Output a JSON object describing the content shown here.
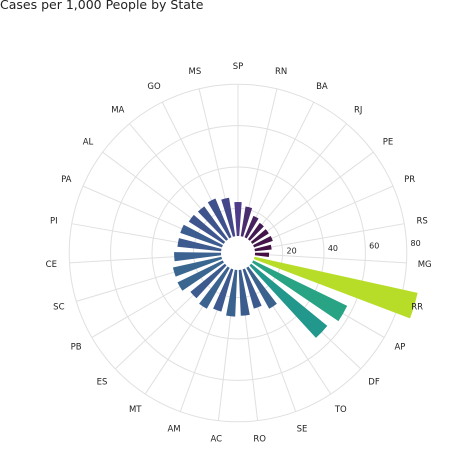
{
  "chart_data": {
    "type": "bar",
    "subtype": "polar-bar",
    "title": "Cases per 1,000 People by State",
    "categories": [
      "SP",
      "RN",
      "BA",
      "RJ",
      "PE",
      "PR",
      "RS",
      "MG",
      "RR",
      "AP",
      "DF",
      "TO",
      "SE",
      "RO",
      "AC",
      "AM",
      "MT",
      "ES",
      "PB",
      "SC",
      "CE",
      "PI",
      "PA",
      "AL",
      "MA",
      "GO",
      "MS"
    ],
    "values": [
      12.3,
      10.9,
      8.4,
      7.3,
      7.1,
      7.2,
      6.1,
      5.1,
      60.5,
      37.8,
      35.6,
      17.0,
      14.8,
      16.6,
      16.9,
      15.9,
      17.0,
      16.1,
      18.2,
      18.0,
      17.0,
      15.9,
      16.0,
      15.0,
      14.7,
      15.2,
      14.1
    ],
    "colors": [
      "#4e3c8a",
      "#4a2d6e",
      "#46225f",
      "#441a52",
      "#431649",
      "#43174a",
      "#431346",
      "#450f44",
      "#b7dd29",
      "#28a384",
      "#22978b",
      "#3a628d",
      "#3d5a8f",
      "#3b5d8e",
      "#3a628e",
      "#3e598f",
      "#3a638f",
      "#3e5b8f",
      "#3a6690",
      "#3a6790",
      "#3b6290",
      "#3d5b8f",
      "#3c5d8f",
      "#3e558e",
      "#3f548d",
      "#3f518c",
      "#44468a"
    ],
    "radial_ticks": [
      "20",
      "40",
      "60",
      "80"
    ],
    "rlim": [
      0,
      80
    ],
    "grid": true
  }
}
